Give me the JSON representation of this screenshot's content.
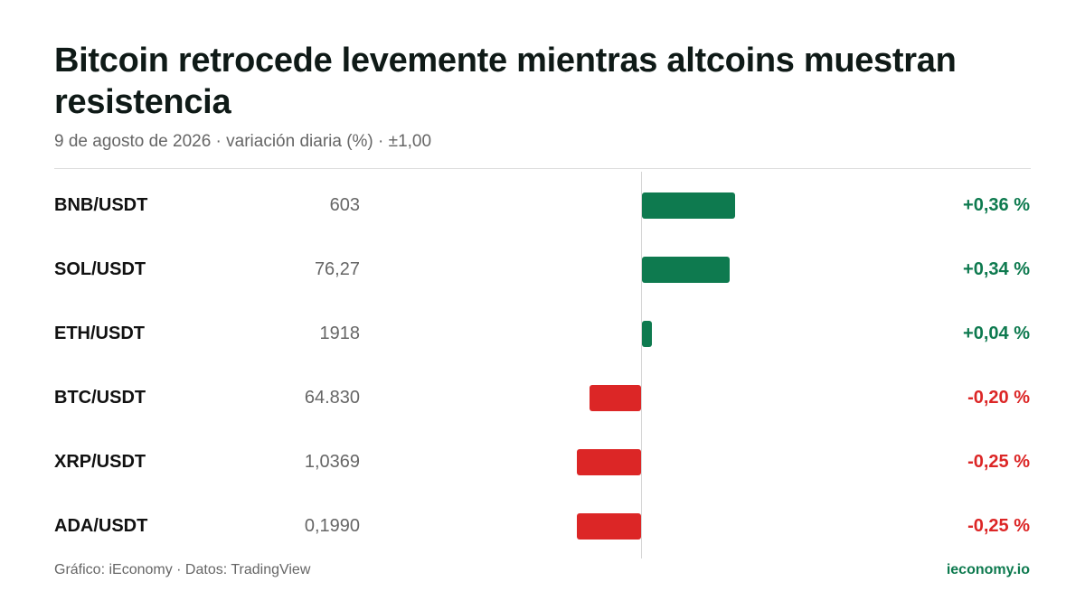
{
  "colors": {
    "positive": "#0e7a4f",
    "negative": "#dc2626",
    "brand": "#0e7a4f"
  },
  "chart_data": {
    "type": "bar",
    "orientation": "horizontal",
    "title": "Bitcoin retrocede levemente mientras altcoins muestran resistencia",
    "subtitle": "9 de agosto de 2026 · variación diaria (%) · ±1,00",
    "xlim": [
      -1.0,
      1.0
    ],
    "categories": [
      "BNB/USDT",
      "SOL/USDT",
      "ETH/USDT",
      "BTC/USDT",
      "XRP/USDT",
      "ADA/USDT"
    ],
    "prices": [
      "603",
      "76,27",
      "1918",
      "64.830",
      "1,0369",
      "0,1990"
    ],
    "values": [
      0.36,
      0.34,
      0.04,
      -0.2,
      -0.25,
      -0.25
    ],
    "value_labels": [
      "+0,36 %",
      "+0,34 %",
      "+0,04 %",
      "-0,20 %",
      "-0,25 %",
      "-0,25 %"
    ]
  },
  "footer": {
    "source": "Gráfico: iEconomy · Datos: TradingView",
    "site": "ieconomy.io"
  }
}
